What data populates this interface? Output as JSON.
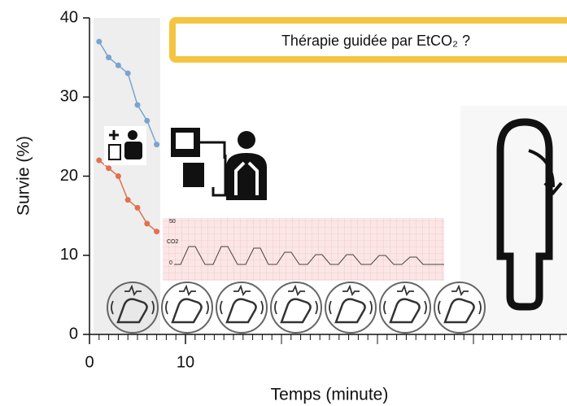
{
  "chart_data": {
    "type": "line",
    "title": "Thérapie guidée par EtCO₂ ?",
    "xlabel": "Temps (minute)",
    "ylabel": "Survie (%)",
    "xlim": [
      0,
      49
    ],
    "xticks": [
      0,
      10
    ],
    "ylim": [
      0,
      40
    ],
    "yticks": [
      0,
      10,
      20,
      30,
      40
    ],
    "x": [
      1,
      2,
      3,
      4,
      5,
      6,
      7
    ],
    "series": [
      {
        "color": "#7ba3d0",
        "values": [
          37,
          35,
          34,
          33,
          29,
          27,
          24
        ]
      },
      {
        "color": "#e0714f",
        "values": [
          22,
          21,
          20,
          17,
          16,
          14,
          13
        ]
      }
    ],
    "capnogram_labels": [
      "50",
      "CO2",
      "0"
    ]
  }
}
